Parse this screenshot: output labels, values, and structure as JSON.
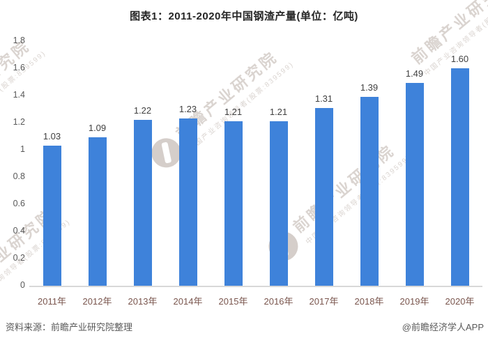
{
  "title": "图表1：2011-2020年中国钢渣产量(单位：亿吨)",
  "footer": {
    "source": "资料来源：前瞻产业研究院整理",
    "credit": "@前瞻经济学人APP"
  },
  "watermark": {
    "main": "前瞻产业研究院",
    "sub": "中国产业咨询领导者(股票:839599)"
  },
  "colors": {
    "bar": "#3e82da",
    "axis_line": "#d8d8d8",
    "title_text": "#262626",
    "y_label": "#595959",
    "x_label": "#7a564e",
    "data_label": "#404040",
    "footer_text": "#595959"
  },
  "chart_data": {
    "type": "bar",
    "title": "图表1：2011-2020年中国钢渣产量(单位：亿吨)",
    "unit": "亿吨",
    "categories": [
      "2011年",
      "2012年",
      "2013年",
      "2014年",
      "2015年",
      "2016年",
      "2017年",
      "2018年",
      "2019年",
      "2020年"
    ],
    "values": [
      1.03,
      1.09,
      1.22,
      1.23,
      1.21,
      1.21,
      1.31,
      1.39,
      1.49,
      1.6
    ],
    "value_labels": [
      "1.03",
      "1.09",
      "1.22",
      "1.23",
      "1.21",
      "1.21",
      "1.31",
      "1.39",
      "1.49",
      "1.60"
    ],
    "xlabel": "",
    "ylabel": "",
    "ylim": [
      0,
      1.8
    ],
    "yticks": [
      "1.8",
      "1.6",
      "1.4",
      "1.2",
      "1",
      "0.8",
      "0.6",
      "0.4",
      "0.2",
      "0"
    ],
    "grid": false,
    "legend": false
  }
}
